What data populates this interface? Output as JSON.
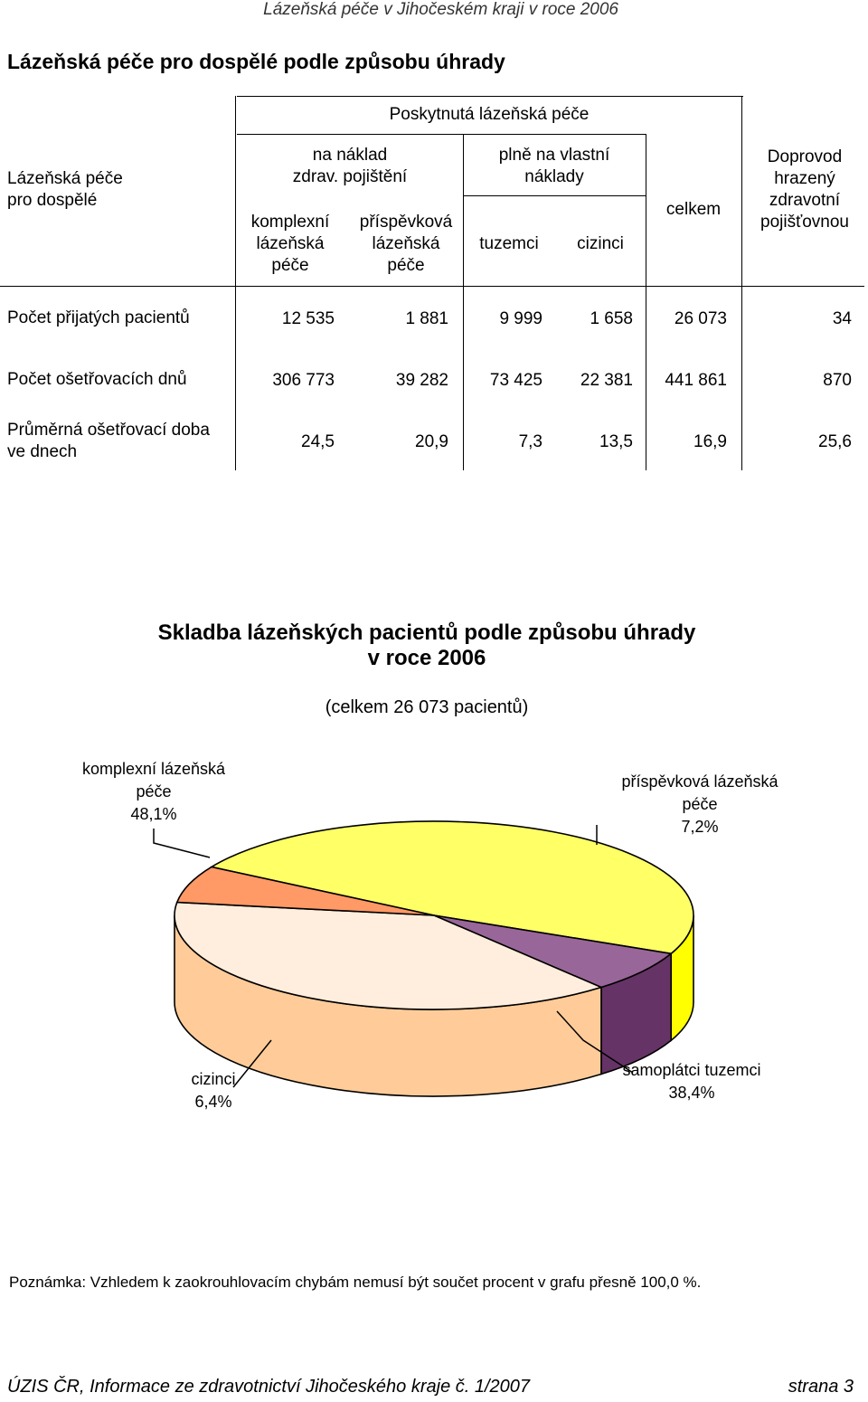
{
  "running_header": "Lázeňská péče v Jihočeském kraji v roce 2006",
  "title": "Lázeňská péče pro dospělé podle způsobu úhrady",
  "table": {
    "corner": [
      "Lázeňská péče",
      "pro dospělé"
    ],
    "group_header": "Poskytnutá lázeňská péče",
    "insurance_group": [
      "na náklad",
      "zdrav. pojištění"
    ],
    "self_pay_group": [
      "plně na vlastní",
      "náklady"
    ],
    "col_komplexni": [
      "komplexní",
      "lázeňská",
      "péče"
    ],
    "col_prispevkova": [
      "příspěvková",
      "lázeňská",
      "péče"
    ],
    "col_tuzemci": "tuzemci",
    "col_cizinci": "cizinci",
    "col_celkem": "celkem",
    "col_doprovod": [
      "Doprovod",
      "hrazený",
      "zdravotní",
      "pojišťovnou"
    ],
    "rows": [
      {
        "label": [
          "Počet přijatých pacientů"
        ],
        "values": [
          "12 535",
          "1 881",
          "9 999",
          "1 658",
          "26 073",
          "34"
        ]
      },
      {
        "label": [
          "Počet ošetřovacích dnů"
        ],
        "values": [
          "306 773",
          "39 282",
          "73 425",
          "22 381",
          "441 861",
          "870"
        ]
      },
      {
        "label": [
          "Průměrná ošetřovací doba",
          "ve dnech"
        ],
        "values": [
          "24,5",
          "20,9",
          "7,3",
          "13,5",
          "16,9",
          "25,6"
        ]
      }
    ]
  },
  "chart_data": {
    "type": "pie",
    "title": [
      "Skladba lázeňských pacientů podle způsobu úhrady",
      "v roce 2006"
    ],
    "subtitle": "(celkem 26 073 pacientů)",
    "slices": [
      {
        "label": [
          "komplexní lázeňská",
          "péče",
          "48,1%"
        ],
        "value": 48.1,
        "color": "#ffff66",
        "side": "#ffff00"
      },
      {
        "label": [
          "příspěvková lázeňská",
          "péče",
          "7,2%"
        ],
        "value": 7.2,
        "color": "#996699",
        "side": "#663366"
      },
      {
        "label": [
          "samoplátci tuzemci",
          "38,4%"
        ],
        "value": 38.4,
        "color": "#ffeedd",
        "side": "#ffcc99"
      },
      {
        "label": [
          "cizinci",
          "6,4%"
        ],
        "value": 6.4,
        "color": "#ff9966",
        "side": "#ff6600"
      }
    ]
  },
  "note": "Poznámka: Vzhledem k zaokrouhlovacím chybám nemusí být součet procent v grafu přesně 100,0 %.",
  "footer": {
    "left": "ÚZIS ČR, Informace ze zdravotnictví Jihočeského kraje č. 1/2007",
    "right": "strana 3"
  }
}
